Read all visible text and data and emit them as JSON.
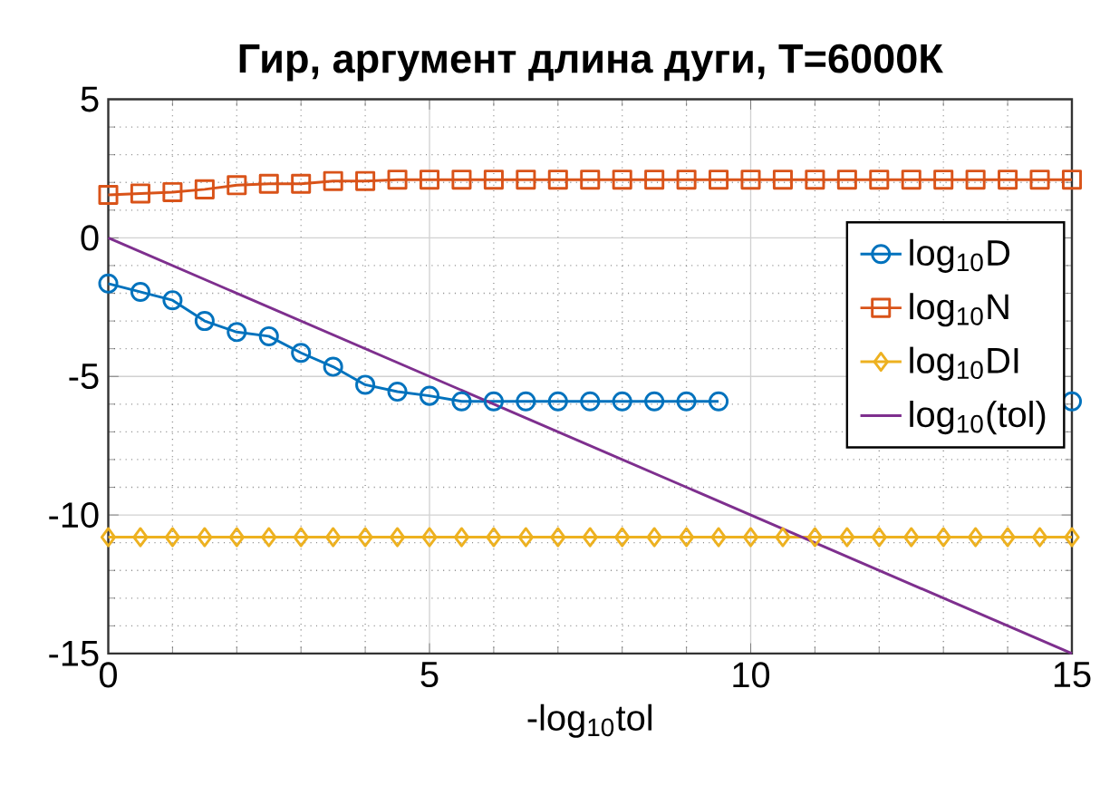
{
  "chart_data": {
    "type": "line",
    "title": "Гир, аргумент длина дуги, T=6000К",
    "xlabel": "-log$_{10}$tol",
    "xlim": [
      0,
      15
    ],
    "ylim": [
      -15,
      5
    ],
    "xticks": [
      0,
      5,
      10,
      15
    ],
    "yticks": [
      -15,
      -10,
      -5,
      0,
      5
    ],
    "grid": true,
    "legend": "right",
    "series": [
      {
        "name": "log$_{10}$D",
        "color": "#0072bd",
        "marker": "circle",
        "x": [
          0,
          0.5,
          1,
          1.5,
          2,
          2.5,
          3,
          3.5,
          4,
          4.5,
          5,
          5.5,
          6,
          6.5,
          7,
          7.5,
          8,
          8.5,
          9,
          9.5,
          10,
          10.5,
          11,
          11.5,
          12,
          12.5,
          13,
          13.5,
          14,
          14.5,
          15
        ],
        "values": [
          -1.65,
          -1.95,
          -2.25,
          -3.0,
          -3.4,
          -3.55,
          -4.15,
          -4.65,
          -5.3,
          -5.55,
          -5.7,
          -5.9,
          -5.9,
          -5.9,
          -5.9,
          -5.9,
          -5.9,
          -5.9,
          -5.9,
          -5.9,
          null,
          null,
          null,
          null,
          null,
          null,
          null,
          null,
          null,
          null,
          -5.9
        ]
      },
      {
        "name": "log$_{10}$N",
        "color": "#d95319",
        "marker": "square",
        "x": [
          0,
          0.5,
          1,
          1.5,
          2,
          2.5,
          3,
          3.5,
          4,
          4.5,
          5,
          5.5,
          6,
          6.5,
          7,
          7.5,
          8,
          8.5,
          9,
          9.5,
          10,
          10.5,
          11,
          11.5,
          12,
          12.5,
          13,
          13.5,
          14,
          14.5,
          15
        ],
        "values": [
          1.55,
          1.6,
          1.65,
          1.75,
          1.9,
          1.95,
          1.95,
          2.05,
          2.05,
          2.1,
          2.1,
          2.1,
          2.1,
          2.1,
          2.1,
          2.1,
          2.1,
          2.1,
          2.1,
          2.1,
          2.1,
          2.1,
          2.1,
          2.1,
          2.1,
          2.1,
          2.1,
          2.1,
          2.1,
          2.1,
          2.1
        ]
      },
      {
        "name": "log$_{10}$DI",
        "color": "#edb120",
        "marker": "diamond",
        "x": [
          0,
          0.5,
          1,
          1.5,
          2,
          2.5,
          3,
          3.5,
          4,
          4.5,
          5,
          5.5,
          6,
          6.5,
          7,
          7.5,
          8,
          8.5,
          9,
          9.5,
          10,
          10.5,
          11,
          11.5,
          12,
          12.5,
          13,
          13.5,
          14,
          14.5,
          15
        ],
        "values": [
          -10.8,
          -10.8,
          -10.8,
          -10.8,
          -10.8,
          -10.8,
          -10.8,
          -10.8,
          -10.8,
          -10.8,
          -10.8,
          -10.8,
          -10.8,
          -10.8,
          -10.8,
          -10.8,
          -10.8,
          -10.8,
          -10.8,
          -10.8,
          -10.8,
          -10.8,
          -10.8,
          -10.8,
          -10.8,
          -10.8,
          -10.8,
          -10.8,
          -10.8,
          -10.8,
          -10.8
        ]
      },
      {
        "name": "log$_{10}$(tol)",
        "color": "#7e2f8e",
        "marker": "none",
        "x": [
          0,
          15
        ],
        "values": [
          0,
          -15
        ]
      }
    ]
  }
}
